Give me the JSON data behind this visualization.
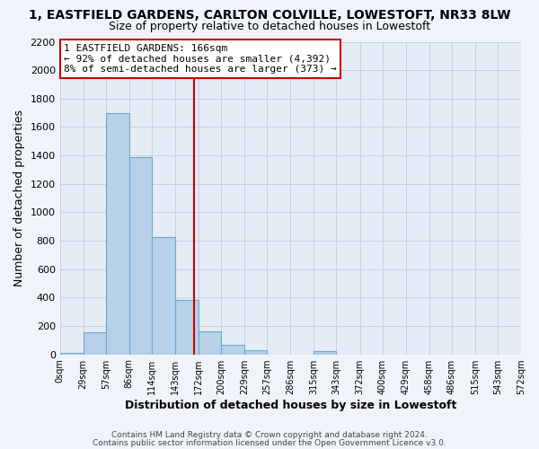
{
  "title1": "1, EASTFIELD GARDENS, CARLTON COLVILLE, LOWESTOFT, NR33 8LW",
  "title2": "Size of property relative to detached houses in Lowestoft",
  "xlabel": "Distribution of detached houses by size in Lowestoft",
  "ylabel": "Number of detached properties",
  "bar_left_edges": [
    0,
    29,
    57,
    86,
    114,
    143,
    172,
    200,
    229,
    257,
    286,
    315,
    343,
    372,
    400,
    429,
    458,
    486,
    515,
    543
  ],
  "bar_widths": [
    29,
    28,
    29,
    28,
    29,
    29,
    28,
    29,
    28,
    29,
    29,
    28,
    29,
    28,
    29,
    29,
    28,
    29,
    28,
    29
  ],
  "bar_heights": [
    10,
    155,
    1700,
    1390,
    825,
    385,
    160,
    65,
    30,
    0,
    0,
    25,
    0,
    0,
    0,
    0,
    0,
    0,
    0,
    0
  ],
  "bar_color": "#b8d0e8",
  "bar_edge_color": "#6aaad4",
  "tick_labels": [
    "0sqm",
    "29sqm",
    "57sqm",
    "86sqm",
    "114sqm",
    "143sqm",
    "172sqm",
    "200sqm",
    "229sqm",
    "257sqm",
    "286sqm",
    "315sqm",
    "343sqm",
    "372sqm",
    "400sqm",
    "429sqm",
    "458sqm",
    "486sqm",
    "515sqm",
    "543sqm",
    "572sqm"
  ],
  "xlim": [
    0,
    572
  ],
  "ylim": [
    0,
    2200
  ],
  "yticks": [
    0,
    200,
    400,
    600,
    800,
    1000,
    1200,
    1400,
    1600,
    1800,
    2000,
    2200
  ],
  "property_line_x": 166,
  "property_line_color": "#cc0000",
  "annotation_title": "1 EASTFIELD GARDENS: 166sqm",
  "annotation_line1": "← 92% of detached houses are smaller (4,392)",
  "annotation_line2": "8% of semi-detached houses are larger (373) →",
  "annotation_box_facecolor": "#ffffff",
  "annotation_box_edgecolor": "#cc0000",
  "bg_color": "#e6ecf5",
  "fig_bg_color": "#f0f4fa",
  "grid_color": "#c5d0e0",
  "title1_fontsize": 10,
  "title2_fontsize": 9,
  "ylabel_fontsize": 9,
  "xlabel_fontsize": 9,
  "footer1": "Contains HM Land Registry data © Crown copyright and database right 2024.",
  "footer2": "Contains public sector information licensed under the Open Government Licence v3.0."
}
